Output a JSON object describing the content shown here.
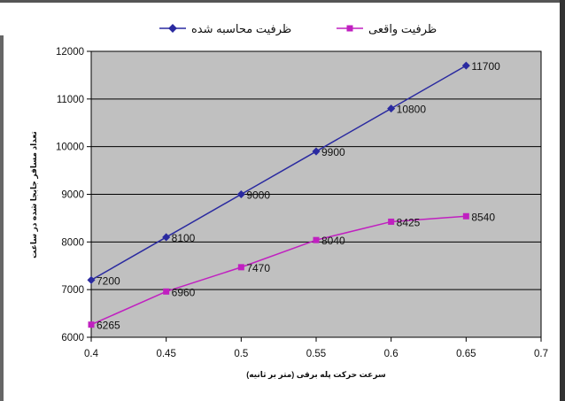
{
  "chart_data": {
    "type": "line",
    "x": [
      0.4,
      0.45,
      0.5,
      0.55,
      0.6,
      0.65
    ],
    "xlim": [
      0.4,
      0.7
    ],
    "ylim": [
      6000,
      12000
    ],
    "xticks": [
      "0.4",
      "0.45",
      "0.5",
      "0.55",
      "0.6",
      "0.65",
      "0.7"
    ],
    "yticks": [
      "6000",
      "7000",
      "8000",
      "9000",
      "10000",
      "11000",
      "12000"
    ],
    "xlabel": "سرعت حرکت پله برقی (متر بر ثانیه)",
    "ylabel": "تعداد مسافر جابجا شده در ساعت",
    "grid": "horizontal",
    "legend_position": "top",
    "series": [
      {
        "name": "ظرفیت محاسبه شده",
        "values": [
          7200,
          8100,
          9000,
          9900,
          10800,
          11700
        ],
        "labels": [
          "7200",
          "8100",
          "9000",
          "9900",
          "10800",
          "11700"
        ],
        "color": "#2a2aa0",
        "marker": "diamond"
      },
      {
        "name": "ظرفیت واقعی",
        "values": [
          6265,
          6960,
          7470,
          8040,
          8425,
          8540
        ],
        "labels": [
          "6265",
          "6960",
          "7470",
          "8040",
          "8425",
          "8540"
        ],
        "color": "#c020c0",
        "marker": "square"
      }
    ],
    "colors": {
      "plot_bg": "#c0c0c0",
      "grid": "#000000"
    }
  }
}
